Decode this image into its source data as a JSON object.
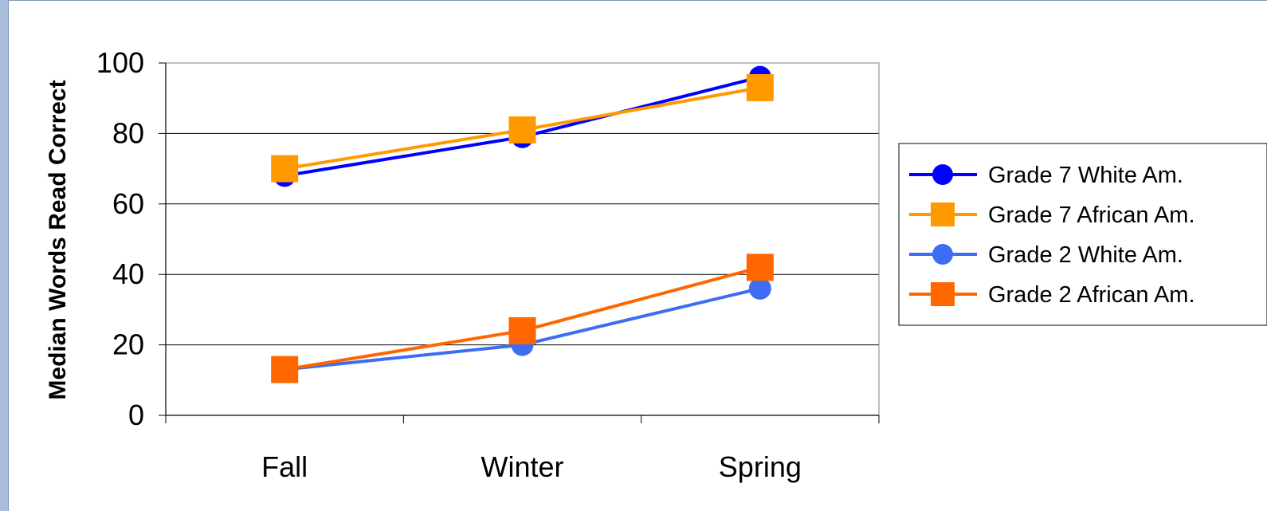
{
  "chart_data": {
    "type": "line",
    "title": "",
    "xlabel": "",
    "ylabel": "Median Words Read Correct",
    "categories": [
      "Fall",
      "Winter",
      "Spring"
    ],
    "ylim": [
      0,
      100
    ],
    "yticks": [
      "0",
      "20",
      "40",
      "60",
      "80",
      "100"
    ],
    "grid": true,
    "legend_position": "right",
    "series": [
      {
        "name": "Grade 7 White Am.",
        "values": [
          68,
          79,
          96
        ],
        "color": "#0000ff",
        "marker": "circle"
      },
      {
        "name": "Grade 7 African Am.",
        "values": [
          70,
          81,
          93
        ],
        "color": "#ff9900",
        "marker": "square"
      },
      {
        "name": "Grade 2 White Am.",
        "values": [
          13,
          20,
          36
        ],
        "color": "#3d6df2",
        "marker": "circle"
      },
      {
        "name": "Grade 2 African Am.",
        "values": [
          13,
          24,
          42
        ],
        "color": "#ff6600",
        "marker": "square"
      }
    ]
  }
}
